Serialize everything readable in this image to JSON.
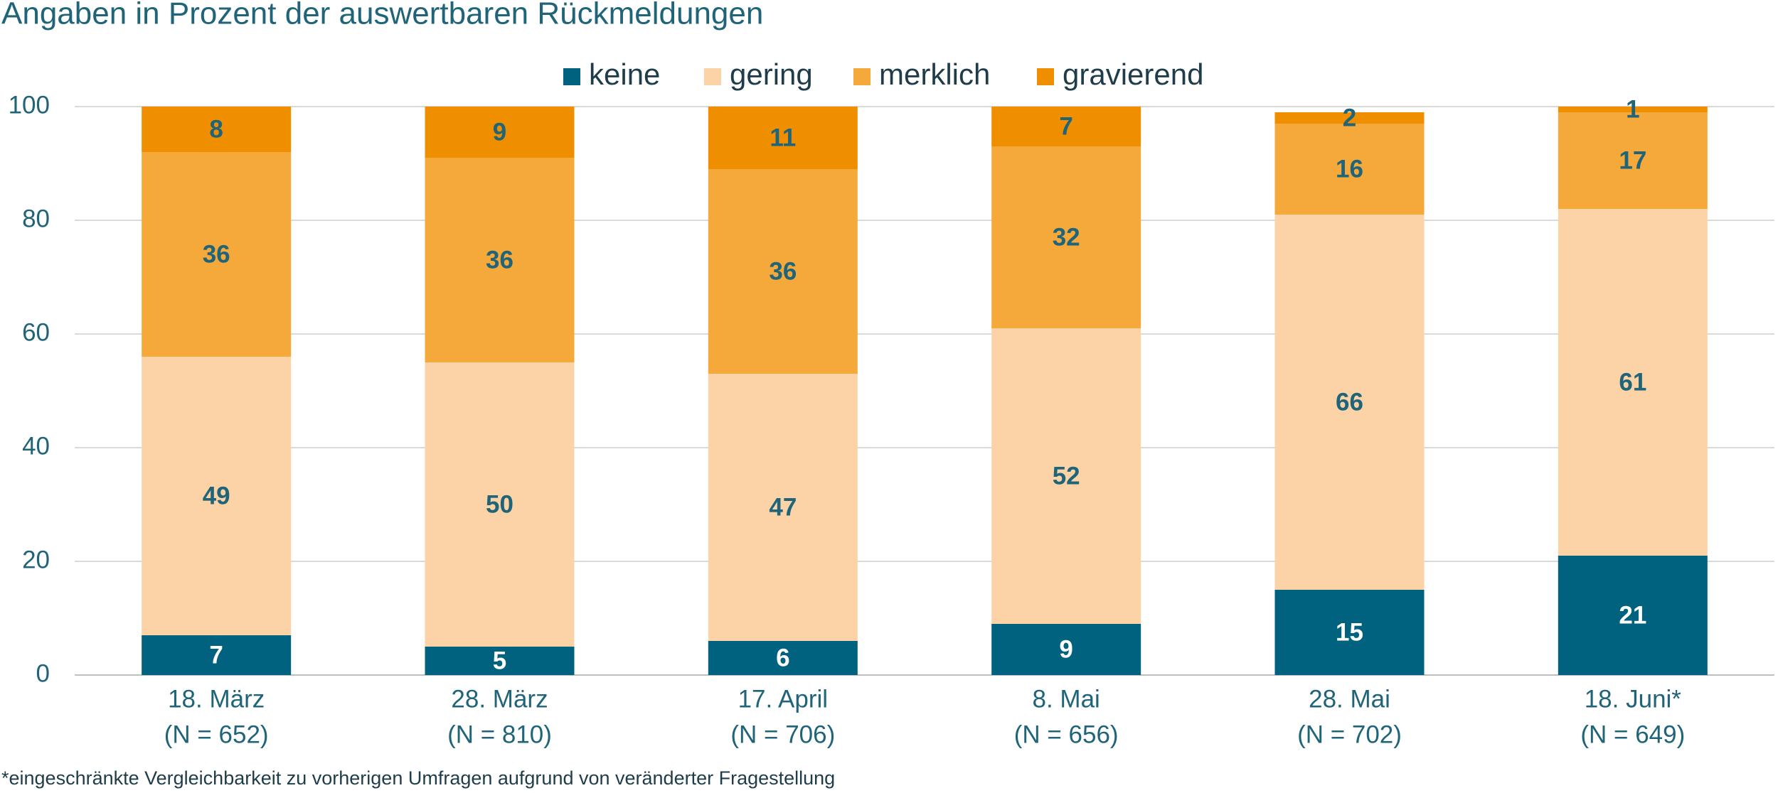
{
  "chart_data": {
    "type": "stacked_bar",
    "title": "Angaben in Prozent der auswertbaren Rückmeldungen",
    "categories": [
      "18. März",
      "28. März",
      "17. April",
      "8. Mai",
      "28. Mai",
      "18. Juni*"
    ],
    "category_notes": [
      "(N = 652)",
      "(N = 810)",
      "(N = 706)",
      "(N = 656)",
      "(N = 702)",
      "(N = 649)"
    ],
    "series": [
      {
        "name": "keine",
        "color": "#00627f",
        "values": [
          7,
          5,
          6,
          9,
          15,
          21
        ]
      },
      {
        "name": "gering",
        "color": "#fbd3a6",
        "values": [
          49,
          50,
          47,
          52,
          66,
          61
        ]
      },
      {
        "name": "merklich",
        "color": "#f5a93a",
        "values": [
          36,
          36,
          36,
          32,
          16,
          17
        ]
      },
      {
        "name": "gravierend",
        "color": "#ef8f00",
        "values": [
          8,
          9,
          11,
          7,
          2,
          1
        ]
      }
    ],
    "ylim": [
      0,
      100
    ],
    "yticks": [
      0,
      20,
      40,
      60,
      80,
      100
    ],
    "grid": true,
    "legend": "top",
    "footnote": "*eingeschränkte Vergleichbarkeit zu vorherigen Umfragen aufgrund von veränderter Fragestellung"
  }
}
